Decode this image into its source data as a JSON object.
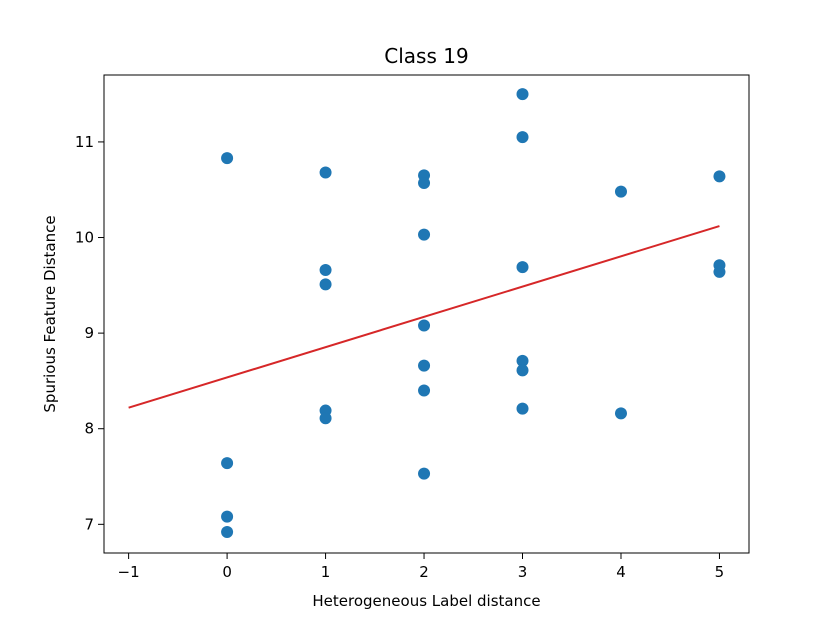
{
  "chart_data": {
    "type": "scatter",
    "title": "Class 19",
    "xlabel": "Heterogeneous Label distance",
    "ylabel": "Spurious Feature Distance",
    "xlim": [
      -1.25,
      5.3
    ],
    "ylim": [
      6.7,
      11.7
    ],
    "xticks": [
      -1,
      0,
      1,
      2,
      3,
      4,
      5
    ],
    "xtick_labels": [
      "−1",
      "0",
      "1",
      "2",
      "3",
      "4",
      "5"
    ],
    "yticks": [
      7,
      8,
      9,
      10,
      11
    ],
    "ytick_labels": [
      "7",
      "8",
      "9",
      "10",
      "11"
    ],
    "grid": false,
    "points": [
      {
        "x": 0,
        "y": 10.83
      },
      {
        "x": 0,
        "y": 7.64
      },
      {
        "x": 0,
        "y": 7.08
      },
      {
        "x": 0,
        "y": 6.92
      },
      {
        "x": 1,
        "y": 10.68
      },
      {
        "x": 1,
        "y": 9.66
      },
      {
        "x": 1,
        "y": 9.51
      },
      {
        "x": 1,
        "y": 8.19
      },
      {
        "x": 1,
        "y": 8.11
      },
      {
        "x": 2,
        "y": 10.65
      },
      {
        "x": 2,
        "y": 10.57
      },
      {
        "x": 2,
        "y": 10.03
      },
      {
        "x": 2,
        "y": 9.08
      },
      {
        "x": 2,
        "y": 8.66
      },
      {
        "x": 2,
        "y": 8.4
      },
      {
        "x": 2,
        "y": 7.53
      },
      {
        "x": 3,
        "y": 11.5
      },
      {
        "x": 3,
        "y": 11.05
      },
      {
        "x": 3,
        "y": 9.69
      },
      {
        "x": 3,
        "y": 8.71
      },
      {
        "x": 3,
        "y": 8.61
      },
      {
        "x": 3,
        "y": 8.21
      },
      {
        "x": 4,
        "y": 10.48
      },
      {
        "x": 4,
        "y": 8.16
      },
      {
        "x": 5,
        "y": 10.64
      },
      {
        "x": 5,
        "y": 9.71
      },
      {
        "x": 5,
        "y": 9.64
      }
    ],
    "fit_line": {
      "x": [
        -1,
        5
      ],
      "y": [
        8.22,
        10.12
      ]
    },
    "point_color": "#1f77b4",
    "line_color": "#d62728"
  }
}
